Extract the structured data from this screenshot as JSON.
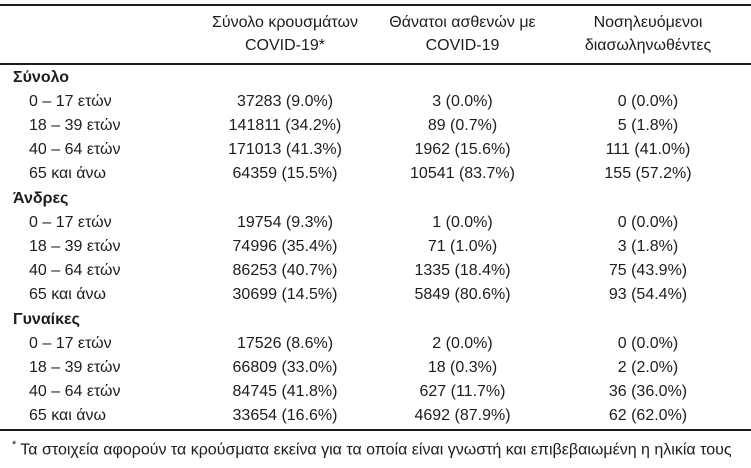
{
  "chart_data": {
    "type": "table",
    "columns": [
      {
        "line1": "Σύνολο κρουσμάτων",
        "line2": "COVID-19*"
      },
      {
        "line1": "Θάνατοι ασθενών με",
        "line2": "COVID-19"
      },
      {
        "line1": "Νοσηλευόμενοι",
        "line2": "διασωληνωθέντες"
      }
    ],
    "sections": [
      {
        "label": "Σύνολο",
        "rows": [
          {
            "age": "0 – 17 ετών",
            "cases": "37283 (9.0%)",
            "deaths": "3 (0.0%)",
            "intubated": "0 (0.0%)"
          },
          {
            "age": "18 – 39 ετών",
            "cases": "141811 (34.2%)",
            "deaths": "89 (0.7%)",
            "intubated": "5 (1.8%)"
          },
          {
            "age": "40 – 64 ετών",
            "cases": "171013 (41.3%)",
            "deaths": "1962 (15.6%)",
            "intubated": "111 (41.0%)"
          },
          {
            "age": "65 και άνω",
            "cases": "64359 (15.5%)",
            "deaths": "10541 (83.7%)",
            "intubated": "155 (57.2%)"
          }
        ]
      },
      {
        "label": "Άνδρες",
        "rows": [
          {
            "age": "0 – 17 ετών",
            "cases": "19754 (9.3%)",
            "deaths": "1 (0.0%)",
            "intubated": "0 (0.0%)"
          },
          {
            "age": "18 – 39 ετών",
            "cases": "74996 (35.4%)",
            "deaths": "71 (1.0%)",
            "intubated": "3 (1.8%)"
          },
          {
            "age": "40 – 64 ετών",
            "cases": "86253 (40.7%)",
            "deaths": "1335 (18.4%)",
            "intubated": "75 (43.9%)"
          },
          {
            "age": "65 και άνω",
            "cases": "30699 (14.5%)",
            "deaths": "5849 (80.6%)",
            "intubated": "93 (54.4%)"
          }
        ]
      },
      {
        "label": "Γυναίκες",
        "rows": [
          {
            "age": "0 – 17 ετών",
            "cases": "17526 (8.6%)",
            "deaths": "2 (0.0%)",
            "intubated": "0 (0.0%)"
          },
          {
            "age": "18 – 39 ετών",
            "cases": "66809 (33.0%)",
            "deaths": "18 (0.3%)",
            "intubated": "2 (2.0%)"
          },
          {
            "age": "40 – 64 ετών",
            "cases": "84745 (41.8%)",
            "deaths": "627 (11.7%)",
            "intubated": "36 (36.0%)"
          },
          {
            "age": "65 και άνω",
            "cases": "33654 (16.6%)",
            "deaths": "4692 (87.9%)",
            "intubated": "62 (62.0%)"
          }
        ]
      }
    ],
    "footnote_marker": "*",
    "footnote": "Τα στοιχεία αφορούν τα κρούσματα εκείνα για τα οποία είναι γνωστή και επιβεβαιωμένη η ηλικία τους",
    "text_color": "#1d1d20",
    "rule_color": "#1c1c1c"
  }
}
